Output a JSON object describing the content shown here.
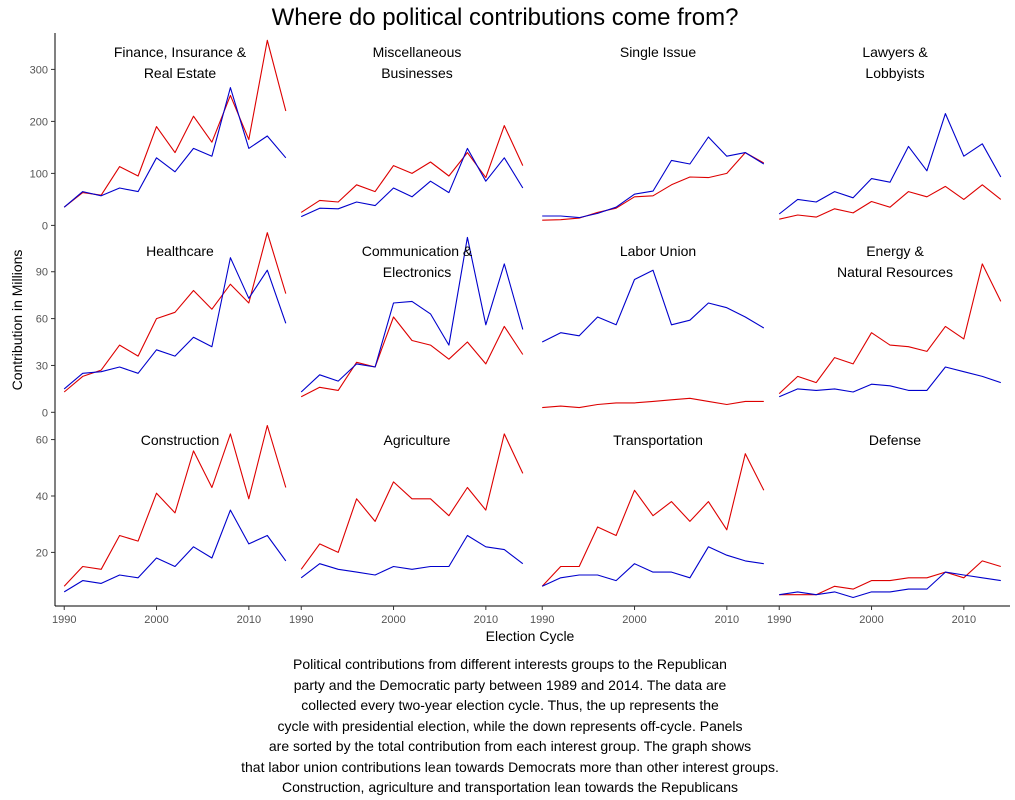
{
  "title": "Where do political contributions come from?",
  "chart_data": {
    "type": "line",
    "facet_layout": "3 rows x 4 columns, shared x axis, free y axis per row",
    "title": "Where do political contributions come from?",
    "xlabel": "Election Cycle",
    "ylabel": "Contribution in Millions",
    "x_ticks": [
      1990,
      2000,
      2010
    ],
    "xlim": [
      1989,
      2015
    ],
    "series_names": [
      "Republican",
      "Democratic"
    ],
    "series_colors": {
      "Republican": "#dd0000",
      "Democratic": "#0000cc"
    },
    "x": [
      1990,
      1992,
      1994,
      1996,
      1998,
      2000,
      2002,
      2004,
      2006,
      2008,
      2010,
      2012,
      2014
    ],
    "rows": [
      {
        "ylim": [
          -5,
          370
        ],
        "yticks": [
          0,
          100,
          200,
          300
        ]
      },
      {
        "ylim": [
          -3,
          118
        ],
        "yticks": [
          0,
          30,
          60,
          90
        ]
      },
      {
        "ylim": [
          1,
          68
        ],
        "yticks": [
          20,
          40,
          60
        ]
      }
    ],
    "panels": [
      {
        "row": 0,
        "col": 0,
        "title_lines": [
          "Finance, Insurance &",
          "Real Estate"
        ],
        "series": [
          {
            "name": "Republican",
            "values": [
              35,
              63,
              58,
              113,
              95,
              190,
              140,
              210,
              160,
              250,
              165,
              356,
              220
            ]
          },
          {
            "name": "Democratic",
            "values": [
              35,
              65,
              57,
              72,
              65,
              130,
              103,
              148,
              133,
              265,
              148,
              172,
              130
            ]
          }
        ]
      },
      {
        "row": 0,
        "col": 1,
        "title_lines": [
          "Miscellaneous",
          "Businesses"
        ],
        "series": [
          {
            "name": "Republican",
            "values": [
              25,
              48,
              45,
              78,
              65,
              115,
              100,
              122,
              95,
              140,
              92,
              192,
              115
            ]
          },
          {
            "name": "Democratic",
            "values": [
              17,
              33,
              32,
              45,
              38,
              72,
              55,
              85,
              63,
              148,
              85,
              130,
              72
            ]
          }
        ]
      },
      {
        "row": 0,
        "col": 2,
        "title_lines": [
          "Single Issue"
        ],
        "series": [
          {
            "name": "Republican",
            "values": [
              10,
              11,
              14,
              25,
              33,
              55,
              57,
              78,
              93,
              92,
              100,
              140,
              120
            ]
          },
          {
            "name": "Democratic",
            "values": [
              18,
              18,
              15,
              23,
              35,
              60,
              66,
              125,
              118,
              170,
              133,
              140,
              118
            ]
          }
        ]
      },
      {
        "row": 0,
        "col": 3,
        "title_lines": [
          "Lawyers &",
          "Lobbyists"
        ],
        "series": [
          {
            "name": "Republican",
            "values": [
              12,
              20,
              16,
              32,
              24,
              46,
              35,
              65,
              55,
              75,
              50,
              78,
              50
            ]
          },
          {
            "name": "Democratic",
            "values": [
              22,
              50,
              45,
              65,
              53,
              90,
              83,
              152,
              105,
              215,
              133,
              157,
              93
            ]
          }
        ]
      },
      {
        "row": 1,
        "col": 0,
        "title_lines": [
          "Healthcare"
        ],
        "series": [
          {
            "name": "Republican",
            "values": [
              13,
              23,
              27,
              43,
              36,
              60,
              64,
              78,
              66,
              82,
              70,
              115,
              76
            ]
          },
          {
            "name": "Democratic",
            "values": [
              15,
              25,
              26,
              29,
              25,
              40,
              36,
              48,
              42,
              99,
              73,
              91,
              57
            ]
          }
        ]
      },
      {
        "row": 1,
        "col": 1,
        "title_lines": [
          "Communication &",
          "Electronics"
        ],
        "series": [
          {
            "name": "Republican",
            "values": [
              10,
              16,
              14,
              32,
              29,
              61,
              46,
              43,
              34,
              45,
              31,
              55,
              37
            ]
          },
          {
            "name": "Democratic",
            "values": [
              13,
              24,
              20,
              31,
              29,
              70,
              71,
              63,
              43,
              112,
              56,
              95,
              53
            ]
          }
        ]
      },
      {
        "row": 1,
        "col": 2,
        "title_lines": [
          "Labor Union"
        ],
        "series": [
          {
            "name": "Republican",
            "values": [
              3,
              4,
              3,
              5,
              6,
              6,
              7,
              8,
              9,
              7,
              5,
              7,
              7
            ]
          },
          {
            "name": "Democratic",
            "values": [
              45,
              51,
              49,
              61,
              56,
              85,
              91,
              56,
              59,
              70,
              67,
              61,
              54
            ]
          }
        ]
      },
      {
        "row": 1,
        "col": 3,
        "title_lines": [
          "Energy &",
          "Natural Resources"
        ],
        "series": [
          {
            "name": "Republican",
            "values": [
              12,
              23,
              19,
              35,
              31,
              51,
              43,
              42,
              39,
              55,
              47,
              95,
              71
            ]
          },
          {
            "name": "Democratic",
            "values": [
              10,
              15,
              14,
              15,
              13,
              18,
              17,
              14,
              14,
              29,
              26,
              23,
              19
            ]
          }
        ]
      },
      {
        "row": 2,
        "col": 0,
        "title_lines": [
          "Construction"
        ],
        "series": [
          {
            "name": "Republican",
            "values": [
              8,
              15,
              14,
              26,
              24,
              41,
              34,
              56,
              43,
              62,
              39,
              65,
              43
            ]
          },
          {
            "name": "Democratic",
            "values": [
              6,
              10,
              9,
              12,
              11,
              18,
              15,
              22,
              18,
              35,
              23,
              26,
              17
            ]
          }
        ]
      },
      {
        "row": 2,
        "col": 1,
        "title_lines": [
          "Agriculture"
        ],
        "series": [
          {
            "name": "Republican",
            "values": [
              14,
              23,
              20,
              39,
              31,
              45,
              39,
              39,
              33,
              43,
              35,
              62,
              48
            ]
          },
          {
            "name": "Democratic",
            "values": [
              11,
              16,
              14,
              13,
              12,
              15,
              14,
              15,
              15,
              26,
              22,
              21,
              16
            ]
          }
        ]
      },
      {
        "row": 2,
        "col": 2,
        "title_lines": [
          "Transportation"
        ],
        "series": [
          {
            "name": "Republican",
            "values": [
              8,
              15,
              15,
              29,
              26,
              42,
              33,
              38,
              31,
              38,
              28,
              55,
              42
            ]
          },
          {
            "name": "Democratic",
            "values": [
              8,
              11,
              12,
              12,
              10,
              16,
              13,
              13,
              11,
              22,
              19,
              17,
              16
            ]
          }
        ]
      },
      {
        "row": 2,
        "col": 3,
        "title_lines": [
          "Defense"
        ],
        "series": [
          {
            "name": "Republican",
            "values": [
              5,
              5,
              5,
              8,
              7,
              10,
              10,
              11,
              11,
              13,
              11,
              17,
              15
            ]
          },
          {
            "name": "Democratic",
            "values": [
              5,
              6,
              5,
              6,
              4,
              6,
              6,
              7,
              7,
              13,
              12,
              11,
              10
            ]
          }
        ]
      }
    ]
  },
  "caption_lines": [
    "Political contributions from different interests groups to the Republican",
    "party and the Democratic party between 1989 and 2014. The data are",
    "collected every two-year election cycle. Thus, the up represents the",
    "cycle with presidential election, while the down represents off-cycle. Panels",
    "are sorted by the total contribution from each interest group. The graph shows",
    "that labor union contributions lean towards Democrats more than other interest groups.",
    "Construction, agriculture and transportation lean towards the Republicans"
  ]
}
